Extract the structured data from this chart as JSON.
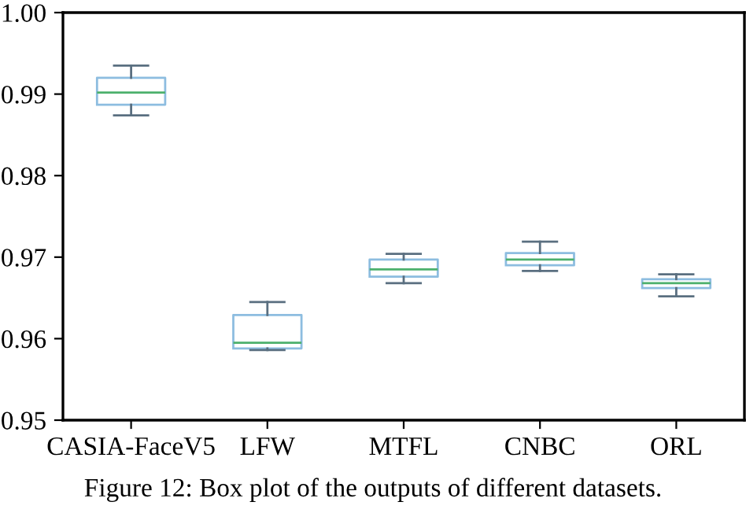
{
  "chart_data": {
    "type": "box",
    "categories": [
      "CASIA-FaceV5",
      "LFW",
      "MTFL",
      "CNBC",
      "ORL"
    ],
    "boxes": [
      {
        "low": 0.9874,
        "q1": 0.9887,
        "median": 0.9902,
        "q3": 0.992,
        "high": 0.9935
      },
      {
        "low": 0.9586,
        "q1": 0.9588,
        "median": 0.9595,
        "q3": 0.9629,
        "high": 0.9645
      },
      {
        "low": 0.9668,
        "q1": 0.9676,
        "median": 0.9685,
        "q3": 0.9697,
        "high": 0.9704
      },
      {
        "low": 0.9683,
        "q1": 0.969,
        "median": 0.9697,
        "q3": 0.9705,
        "high": 0.9719
      },
      {
        "low": 0.9652,
        "q1": 0.9662,
        "median": 0.9668,
        "q3": 0.9673,
        "high": 0.9679
      }
    ],
    "color": "#8dbde0",
    "ylim": [
      0.95,
      1.0
    ],
    "yticks": [
      {
        "value": 0.95,
        "label": "0.95"
      },
      {
        "value": 0.96,
        "label": "0.96"
      },
      {
        "value": 0.97,
        "label": "0.97"
      },
      {
        "value": 0.98,
        "label": "0.98"
      },
      {
        "value": 0.99,
        "label": "0.99"
      },
      {
        "value": 1.0,
        "label": "1.00"
      }
    ],
    "grid": false,
    "annotations": [
      "Figure 12: Box plot of the outputs of different datasets."
    ]
  }
}
